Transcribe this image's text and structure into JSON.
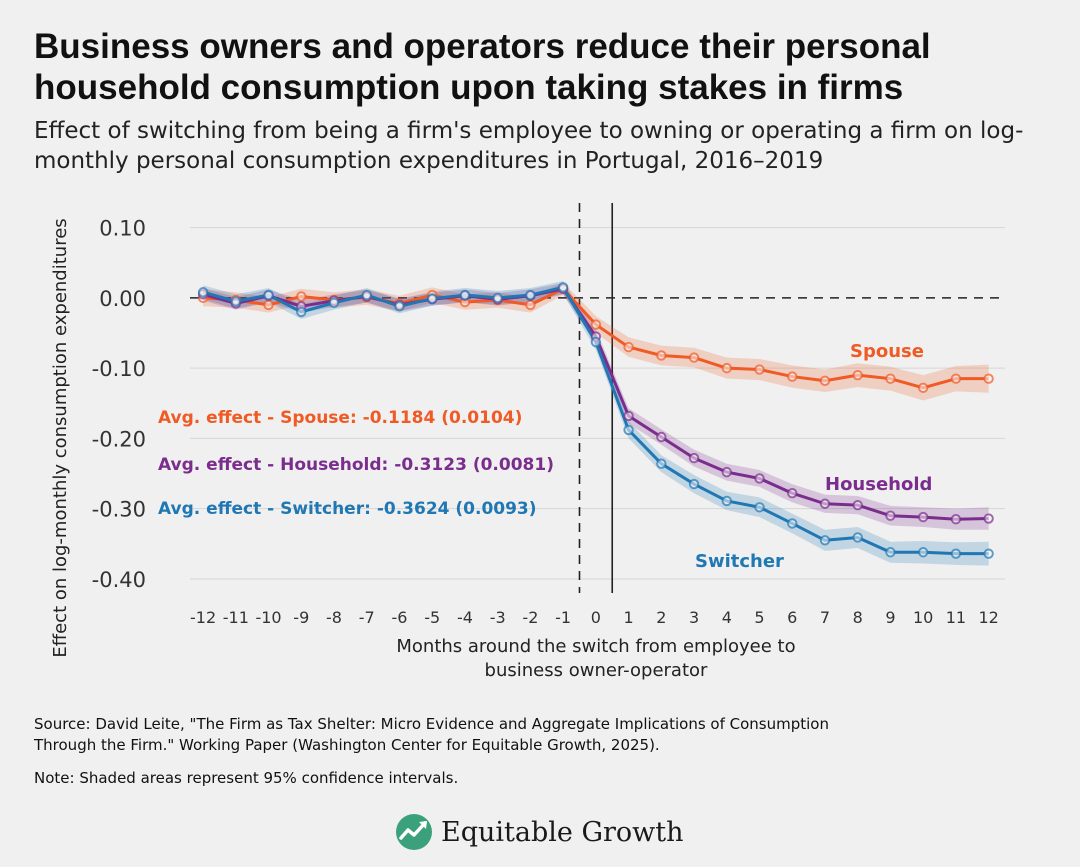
{
  "header": {
    "title": "Business owners and operators reduce their personal household consumption upon taking stakes in firms",
    "subtitle": "Effect of switching from being a firm's employee to owning or operating a firm on log-monthly personal consumption expenditures in Portugal, 2016–2019"
  },
  "chart_data": {
    "type": "line",
    "ylabel": "Effect on log-monthly consumption expenditures",
    "xlabel_line1": "Months around the switch from employee to",
    "xlabel_line2": "business owner-operator",
    "x": [
      -12,
      -11,
      -10,
      -9,
      -8,
      -7,
      -6,
      -5,
      -4,
      -3,
      -2,
      -1,
      0,
      1,
      2,
      3,
      4,
      5,
      6,
      7,
      8,
      9,
      10,
      11,
      12
    ],
    "x_tick_labels": [
      "-12",
      "-11",
      "-10",
      "-9",
      "-8",
      "-7",
      "-6",
      "-5",
      "-4",
      "-3",
      "-2",
      "-1",
      "0",
      "1",
      "2",
      "3",
      "4",
      "5",
      "6",
      "7",
      "8",
      "9",
      "10",
      "11",
      "12"
    ],
    "y_ticks": [
      0.1,
      0.0,
      -0.1,
      -0.2,
      -0.3,
      -0.4
    ],
    "y_tick_labels": [
      "0.10",
      "0.00",
      "-0.10",
      "-0.20",
      "-0.30",
      "-0.40"
    ],
    "ylim": [
      -0.42,
      0.135
    ],
    "xlim": [
      -12.4,
      12.5
    ],
    "dashed_vline_x": -0.5,
    "solid_vline_x": 0.5,
    "zero_hline": 0.0,
    "series": [
      {
        "name": "Spouse",
        "label": "Spouse",
        "color": "#f05a24",
        "values": [
          0.0,
          -0.003,
          -0.01,
          0.002,
          -0.003,
          0.001,
          -0.008,
          0.004,
          -0.006,
          -0.003,
          -0.01,
          0.013,
          -0.038,
          -0.07,
          -0.082,
          -0.085,
          -0.1,
          -0.102,
          -0.112,
          -0.118,
          -0.11,
          -0.115,
          -0.128,
          -0.115,
          -0.115
        ],
        "ci": [
          0.012,
          0.011,
          0.011,
          0.011,
          0.011,
          0.011,
          0.011,
          0.011,
          0.011,
          0.011,
          0.011,
          0.009,
          0.012,
          0.014,
          0.014,
          0.014,
          0.015,
          0.015,
          0.016,
          0.016,
          0.017,
          0.017,
          0.018,
          0.018,
          0.02
        ]
      },
      {
        "name": "Household",
        "label": "Household",
        "color": "#7b2d8e",
        "values": [
          0.005,
          -0.008,
          0.003,
          -0.012,
          -0.004,
          0.002,
          -0.01,
          -0.002,
          0.003,
          -0.002,
          0.003,
          0.013,
          -0.055,
          -0.168,
          -0.198,
          -0.228,
          -0.248,
          -0.257,
          -0.278,
          -0.293,
          -0.295,
          -0.31,
          -0.312,
          -0.315,
          -0.314
        ],
        "ci": [
          0.009,
          0.009,
          0.009,
          0.009,
          0.009,
          0.009,
          0.009,
          0.009,
          0.009,
          0.009,
          0.009,
          0.008,
          0.01,
          0.011,
          0.011,
          0.012,
          0.012,
          0.012,
          0.013,
          0.013,
          0.013,
          0.014,
          0.014,
          0.015,
          0.016
        ]
      },
      {
        "name": "Switcher",
        "label": "Switcher",
        "color": "#1f77b4",
        "values": [
          0.008,
          -0.005,
          0.004,
          -0.02,
          -0.007,
          0.004,
          -0.012,
          -0.001,
          0.004,
          0.0,
          0.004,
          0.015,
          -0.063,
          -0.188,
          -0.236,
          -0.265,
          -0.289,
          -0.298,
          -0.321,
          -0.345,
          -0.341,
          -0.362,
          -0.362,
          -0.364,
          -0.364
        ],
        "ci": [
          0.01,
          0.01,
          0.01,
          0.01,
          0.01,
          0.01,
          0.01,
          0.01,
          0.01,
          0.01,
          0.01,
          0.009,
          0.011,
          0.012,
          0.012,
          0.013,
          0.013,
          0.014,
          0.014,
          0.015,
          0.015,
          0.015,
          0.016,
          0.016,
          0.017
        ]
      }
    ],
    "annotations": [
      {
        "series": "Spouse",
        "text": "Avg. effect - Spouse: -0.1184 (0.0104)"
      },
      {
        "series": "Household",
        "text": "Avg. effect - Household: -0.3123 (0.0081)"
      },
      {
        "series": "Switcher",
        "text": "Avg. effect - Switcher: -0.3624 (0.0093)"
      }
    ]
  },
  "footer": {
    "source_line1": "Source: David Leite, \"The Firm as Tax Shelter: Micro Evidence and Aggregate Implications of Consumption",
    "source_line2": "Through the Firm.\" Working Paper (Washington Center for Equitable Growth, 2025).",
    "note": "Note: Shaded areas represent 95% confidence intervals."
  },
  "brand": {
    "name": "Equitable Growth",
    "logo_icon": "equitable-growth-logo-icon",
    "logo_color": "#3aa17a"
  }
}
